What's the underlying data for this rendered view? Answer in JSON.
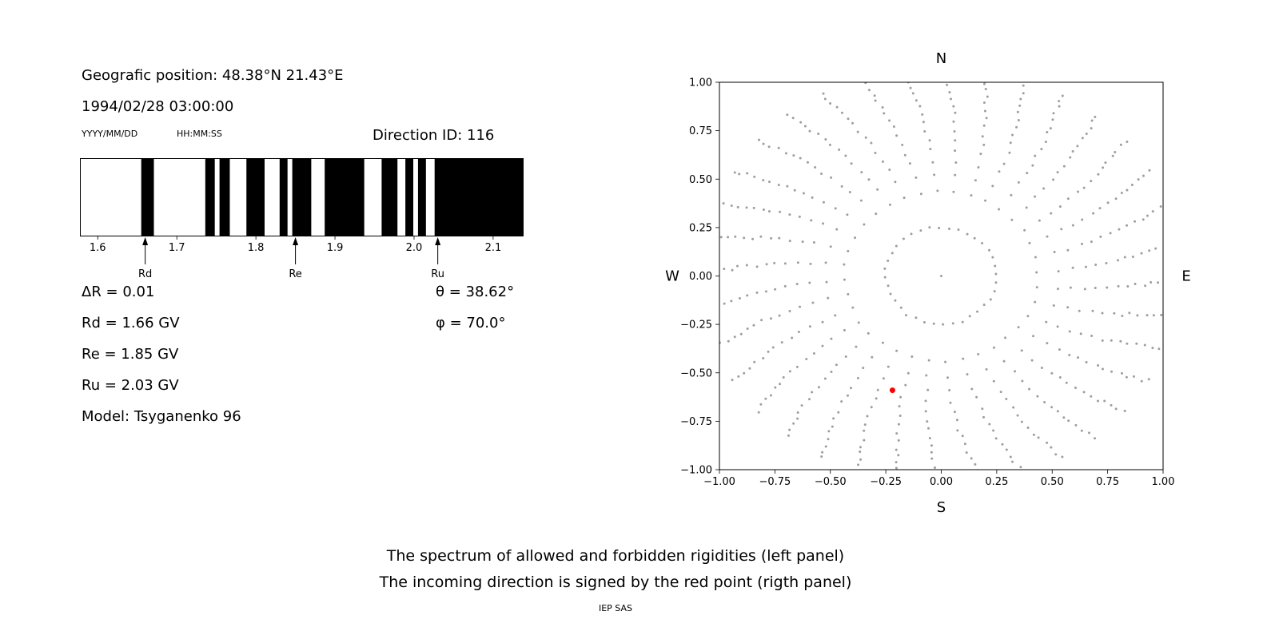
{
  "figure": {
    "background": "#ffffff"
  },
  "header": {
    "geo_position": "Geografic position: 48.38°N 21.43°E",
    "datetime": "1994/02/28 03:00:00",
    "date_format_label": "YYYY/MM/DD",
    "time_format_label": "HH:MM:SS",
    "direction_id": "Direction ID: 116"
  },
  "info": {
    "delta_r": "ΔR = 0.01",
    "rd": "Rd = 1.66 GV",
    "re": "Re = 1.85 GV",
    "ru": "Ru = 2.03 GV",
    "model": "Model: Tsyganenko 96",
    "theta": "θ = 38.62°",
    "phi": "φ = 70.0°"
  },
  "caption": {
    "line1": "The spectrum of allowed and forbidden rigidities (left panel)",
    "line2": "The incoming direction is signed by the red point (rigth panel)",
    "credit": "IEP SAS"
  },
  "chart_data": [
    {
      "name": "rigidity_spectrum",
      "type": "barcode",
      "panel": "left",
      "xlim": [
        1.578,
        2.138
      ],
      "xtick_values": [
        1.6,
        1.7,
        1.8,
        1.9,
        2.0,
        2.1
      ],
      "xtick_labels": [
        "1.6",
        "1.7",
        "1.8",
        "1.9",
        "2.0",
        "2.1"
      ],
      "allowed_color": "#000000",
      "forbidden_color": "#ffffff",
      "allowed_bands_gv": [
        [
          1.655,
          1.671
        ],
        [
          1.736,
          1.748
        ],
        [
          1.754,
          1.767
        ],
        [
          1.788,
          1.811
        ],
        [
          1.83,
          1.84
        ],
        [
          1.846,
          1.87
        ],
        [
          1.887,
          1.937
        ],
        [
          1.959,
          1.979
        ],
        [
          1.989,
          1.999
        ],
        [
          2.005,
          2.015
        ],
        [
          2.026,
          2.138
        ]
      ],
      "cutoff_markers": [
        {
          "label": "Rd",
          "value_gv": 1.66
        },
        {
          "label": "Re",
          "value_gv": 1.85
        },
        {
          "label": "Ru",
          "value_gv": 2.03
        }
      ]
    },
    {
      "name": "incoming_direction_map",
      "type": "scatter",
      "panel": "right",
      "xlim": [
        -1.0,
        1.0
      ],
      "ylim": [
        -1.0,
        1.0
      ],
      "grid": false,
      "legend": false,
      "xtick_values": [
        -1.0,
        -0.75,
        -0.5,
        -0.25,
        0.0,
        0.25,
        0.5,
        0.75,
        1.0
      ],
      "xtick_labels": [
        "−1.00",
        "−0.75",
        "−0.50",
        "−0.25",
        "0.00",
        "0.25",
        "0.50",
        "0.75",
        "1.00"
      ],
      "ytick_values": [
        1.0,
        0.75,
        0.5,
        0.25,
        0.0,
        -0.25,
        -0.5,
        -0.75,
        -1.0
      ],
      "ytick_labels": [
        "1.00",
        "0.75",
        "0.50",
        "0.25",
        "0.00",
        "−0.25",
        "−0.50",
        "−0.75",
        "−1.00"
      ],
      "compass": {
        "top": "N",
        "right": "E",
        "bottom": "S",
        "left": "W"
      },
      "red_point": {
        "x": -0.22,
        "y": -0.59,
        "color": "#ff0000"
      },
      "gray_dots": {
        "color": "#9e9e9e",
        "n_spokes": 36,
        "dots_per_spoke": 16,
        "r_inner": 0.25,
        "r_outer": 1.08,
        "curl_deg": 8,
        "center_dot": true
      }
    }
  ]
}
